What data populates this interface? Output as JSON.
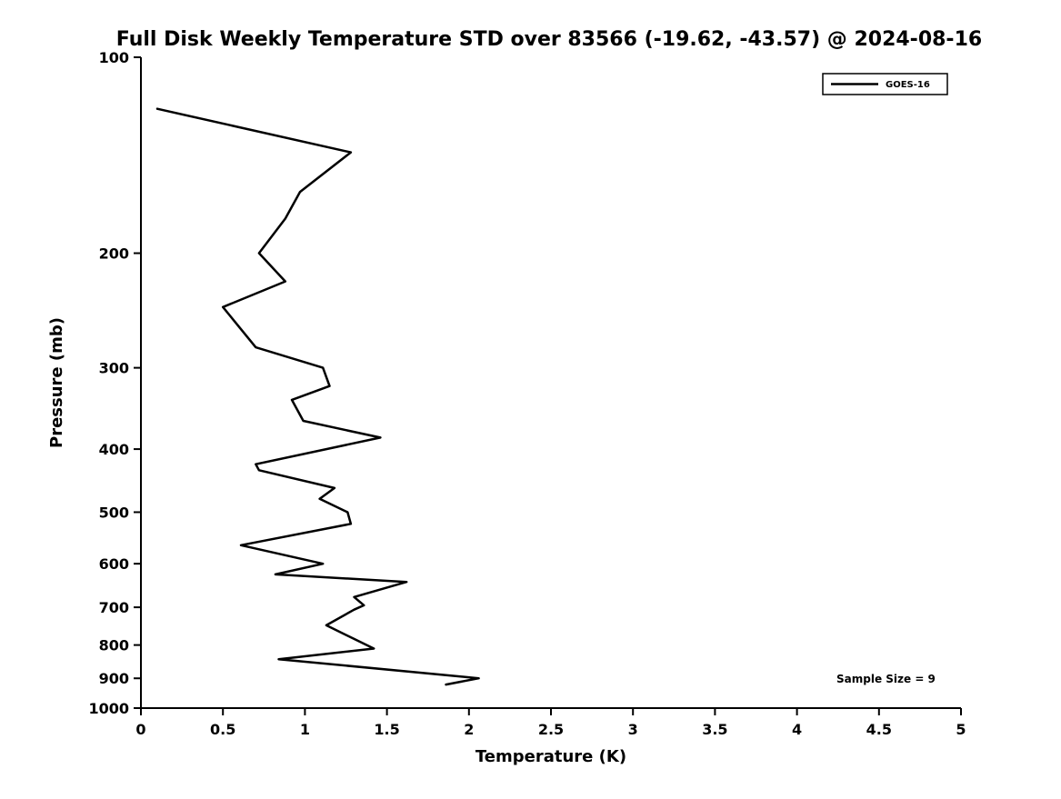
{
  "chart_data": {
    "type": "line",
    "title": "Full Disk Weekly Temperature STD over 83566 (-19.62, -43.57) @ 2024-08-16",
    "xlabel": "Temperature (K)",
    "ylabel": "Pressure (mb)",
    "xlim": [
      0,
      5
    ],
    "ylim": [
      100,
      1000
    ],
    "x_scale": "linear",
    "y_scale": "log",
    "y_inverted": true,
    "grid": false,
    "x_ticks": [
      0,
      0.5,
      1,
      1.5,
      2,
      2.5,
      3,
      3.5,
      4,
      4.5,
      5
    ],
    "x_tick_labels": [
      "0",
      "0.5",
      "1",
      "1.5",
      "2",
      "2.5",
      "3",
      "3.5",
      "4",
      "4.5",
      "5"
    ],
    "y_ticks": [
      100,
      200,
      300,
      400,
      500,
      600,
      700,
      800,
      900,
      1000
    ],
    "y_tick_labels": [
      "100",
      "200",
      "300",
      "400",
      "500",
      "600",
      "700",
      "800",
      "900",
      "1000"
    ],
    "legend": {
      "position": "top-right",
      "entries": [
        {
          "label": "GOES-16",
          "color": "#000000"
        }
      ]
    },
    "series": [
      {
        "name": "GOES-16",
        "color": "#000000",
        "line_width": 2.5,
        "point_format": [
          "temperature_k",
          "pressure_mb"
        ],
        "points": [
          [
            0.1,
            120
          ],
          [
            1.28,
            140
          ],
          [
            0.97,
            161
          ],
          [
            0.88,
            177
          ],
          [
            0.72,
            200
          ],
          [
            0.88,
            221
          ],
          [
            0.5,
            242
          ],
          [
            0.7,
            279
          ],
          [
            1.11,
            300
          ],
          [
            1.15,
            320
          ],
          [
            0.92,
            336
          ],
          [
            0.99,
            362
          ],
          [
            1.46,
            384
          ],
          [
            0.7,
            422
          ],
          [
            0.72,
            431
          ],
          [
            1.18,
            459
          ],
          [
            1.09,
            477
          ],
          [
            1.26,
            500
          ],
          [
            1.28,
            521
          ],
          [
            0.61,
            562
          ],
          [
            1.11,
            600
          ],
          [
            0.82,
            623
          ],
          [
            1.62,
            640
          ],
          [
            1.3,
            675
          ],
          [
            1.36,
            695
          ],
          [
            1.3,
            706
          ],
          [
            1.13,
            746
          ],
          [
            1.3,
            783
          ],
          [
            1.42,
            810
          ],
          [
            0.84,
            841
          ],
          [
            2.06,
            900
          ],
          [
            1.86,
            920
          ]
        ]
      }
    ],
    "annotations": [
      {
        "text": "Sample Size = 9",
        "position": "bottom-right"
      }
    ]
  }
}
